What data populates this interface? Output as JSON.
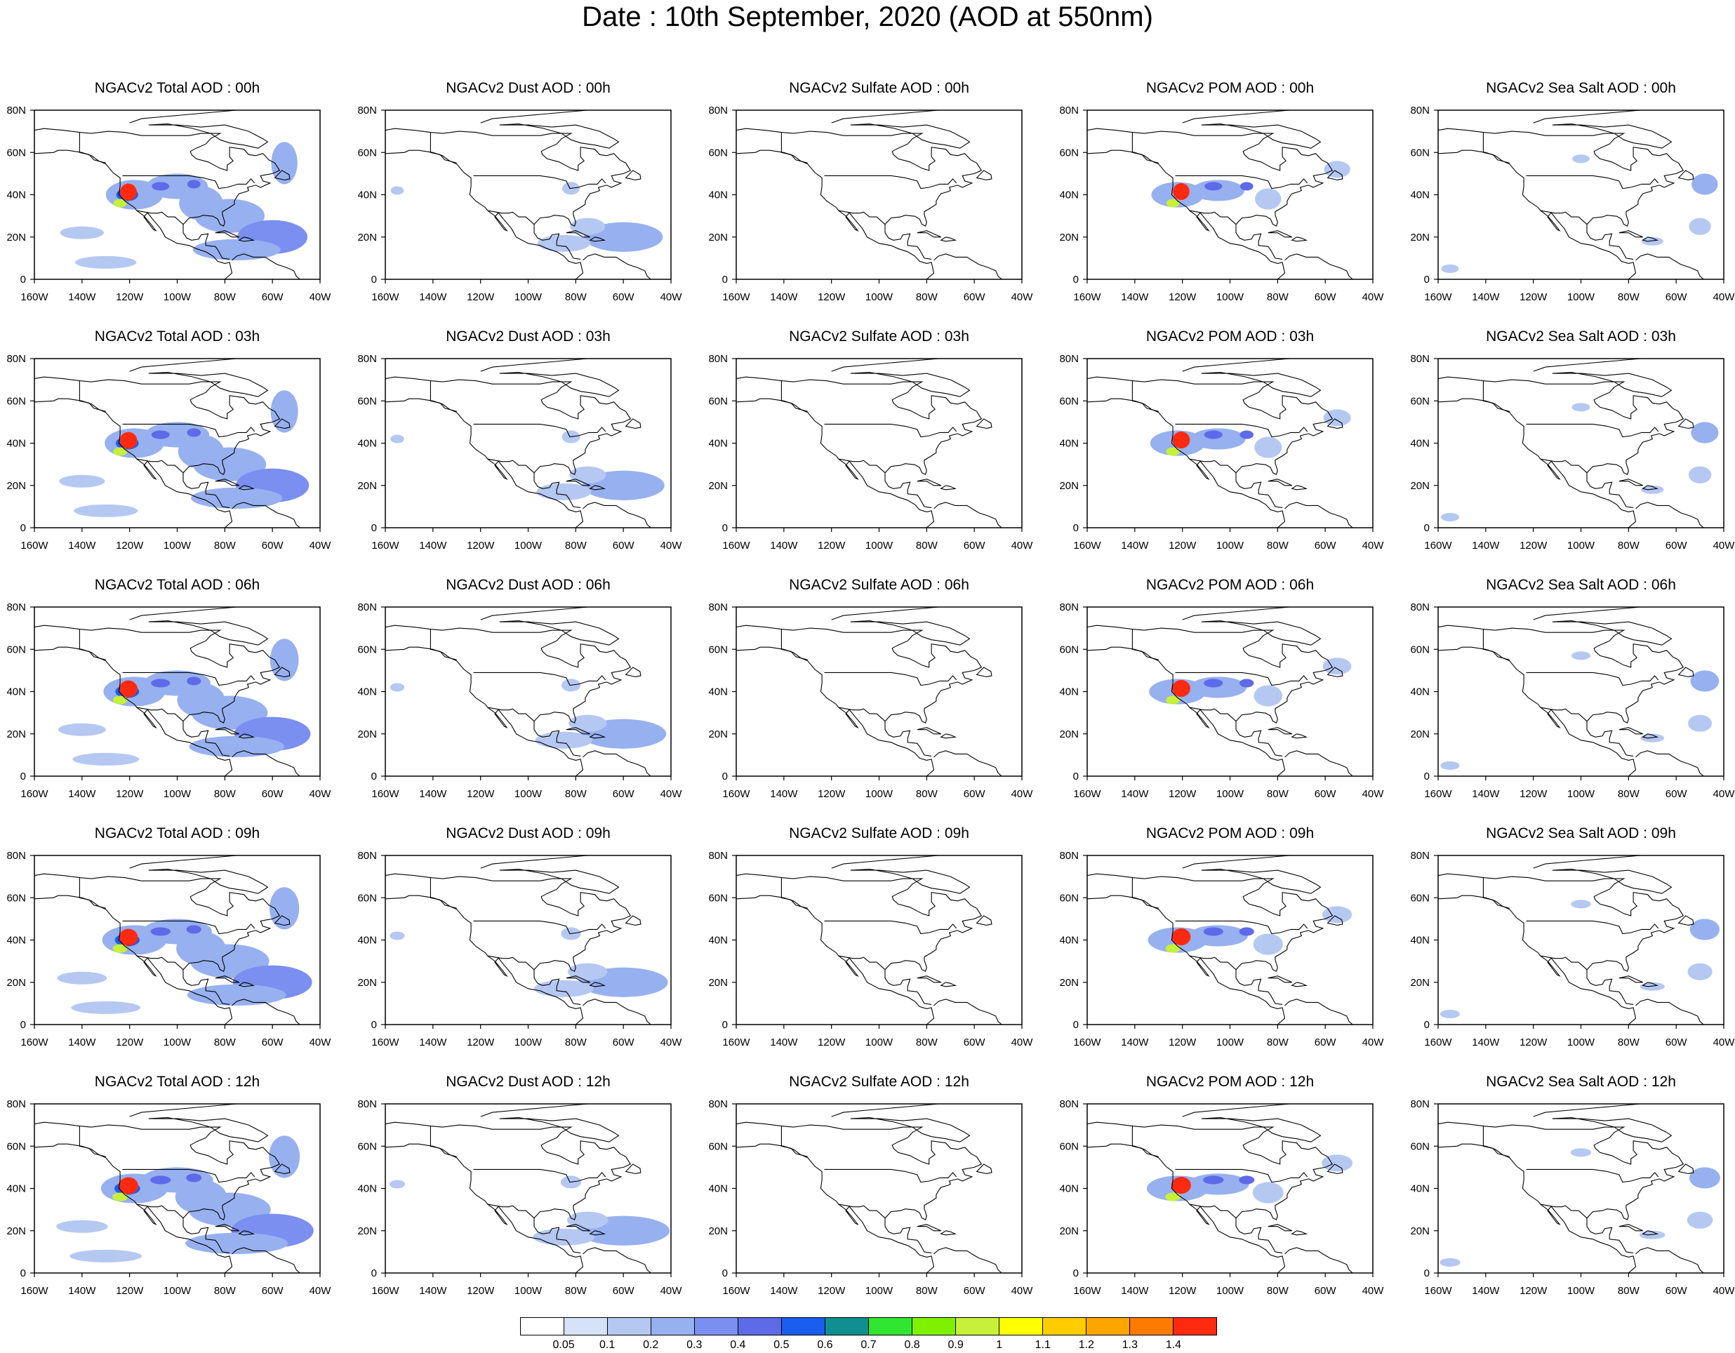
{
  "title": "Date : 10th September, 2020 (AOD at 550nm)",
  "axes": {
    "lon_labels": [
      "160W",
      "140W",
      "120W",
      "100W",
      "80W",
      "60W",
      "40W"
    ],
    "lat_labels": [
      "80N",
      "60N",
      "40N",
      "20N",
      "0"
    ],
    "lon_range": [
      -160,
      -40
    ],
    "lat_range": [
      0,
      80
    ]
  },
  "rows": [
    {
      "titles": [
        "NGACv2 Total AOD : 00h",
        "NGACv2 Dust AOD : 00h",
        "NGACv2 Sulfate AOD : 00h",
        "NGACv2 POM AOD : 00h",
        "NGACv2 Sea Salt AOD : 00h"
      ]
    },
    {
      "titles": [
        "NGACv2 Total AOD : 03h",
        "NGACv2 Dust AOD : 03h",
        "NGACv2 Sulfate AOD : 03h",
        "NGACv2 POM AOD : 03h",
        "NGACv2 Sea Salt AOD : 03h"
      ]
    },
    {
      "titles": [
        "NGACv2 Total AOD : 06h",
        "NGACv2 Dust AOD : 06h",
        "NGACv2 Sulfate AOD : 06h",
        "NGACv2 POM AOD : 06h",
        "NGACv2 Sea Salt AOD : 06h"
      ]
    },
    {
      "titles": [
        "NGACv2 Total AOD : 09h",
        "NGACv2 Dust AOD : 09h",
        "NGACv2 Sulfate AOD : 09h",
        "NGACv2 POM AOD : 09h",
        "NGACv2 Sea Salt  AOD : 09h"
      ]
    },
    {
      "titles": [
        "NGACv2 Total AOD  : 12h",
        "NGACv2 Dust AOD : 12h",
        "NGACv2 Sulfate AOD : 12h",
        "NGACv2 POM  AOD : 12h",
        "NGACv2 Sea Salt  AOD : 12h"
      ]
    }
  ],
  "colorbar": {
    "labels": [
      "0.05",
      "0.1",
      "0.2",
      "0.3",
      "0.4",
      "0.5",
      "0.6",
      "0.7",
      "0.8",
      "0.9",
      "1",
      "1.1",
      "1.2",
      "1.3",
      "1.4"
    ],
    "colors": [
      "#ffffff",
      "#d6e2f8",
      "#b5c8f2",
      "#97b0ef",
      "#7a8ff0",
      "#5e6ae8",
      "#1a5ef0",
      "#0f8f8f",
      "#31e631",
      "#7ff000",
      "#c6f03a",
      "#ffff00",
      "#ffcc00",
      "#ffa500",
      "#ff7a00",
      "#ff2a10"
    ]
  }
}
